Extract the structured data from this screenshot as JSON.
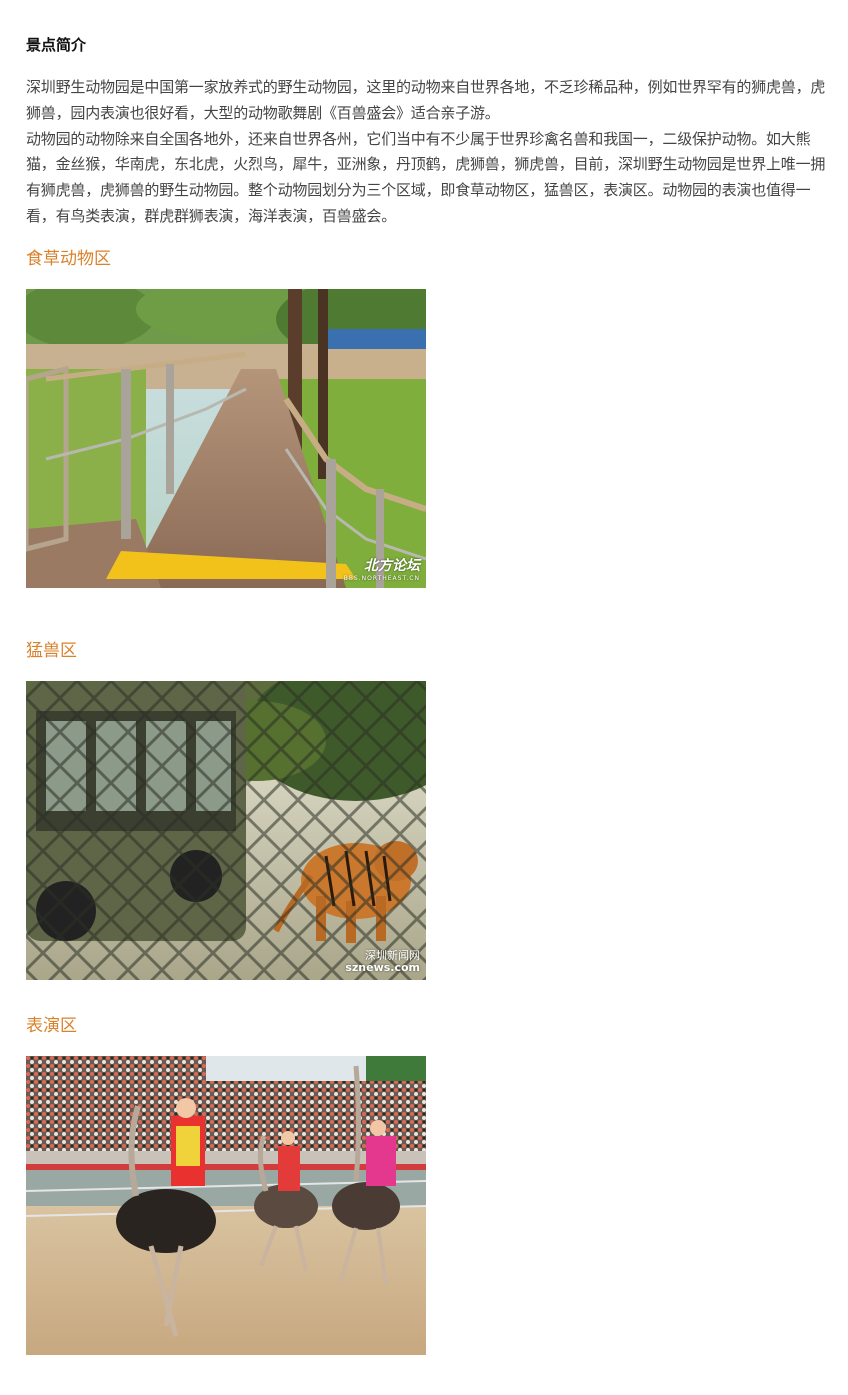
{
  "section": {
    "title": "景点简介"
  },
  "intro": {
    "paragraph1": "深圳野生动物园是中国第一家放养式的野生动物园，这里的动物来自世界各地，不乏珍稀品种，例如世界罕有的狮虎兽，虎狮兽，园内表演也很好看，大型的动物歌舞剧《百兽盛会》适合亲子游。",
    "paragraph2": "动物园的动物除来自全国各地外，还来自世界各州，它们当中有不少属于世界珍禽名兽和我国一，二级保护动物。如大熊猫，金丝猴，华南虎，东北虎，火烈鸟，犀牛，亚洲象，丹顶鹤，虎狮兽，狮虎兽，目前，深圳野生动物园是世界上唯一拥有狮虎兽，虎狮兽的野生动物园。整个动物园划分为三个区域，即食草动物区，猛兽区，表演区。动物园的表演也值得一看，有鸟类表演，群虎群狮表演，海洋表演，百兽盛会。"
  },
  "zones": [
    {
      "title": "食草动物区",
      "image_name": "wooden-boardwalk-photo",
      "watermark": "北方论坛",
      "watermark_sub": "BBS.NORTHEAST.CN"
    },
    {
      "title": "猛兽区",
      "image_name": "tiger-and-bus-photo",
      "watermark": "深圳新闻网",
      "watermark_sub": "sznews.com"
    },
    {
      "title": "表演区",
      "image_name": "ostrich-riders-photo"
    }
  ],
  "colors": {
    "heading": "#111111",
    "body_text": "#444444",
    "zone_title": "#d9822b",
    "background": "#ffffff"
  }
}
